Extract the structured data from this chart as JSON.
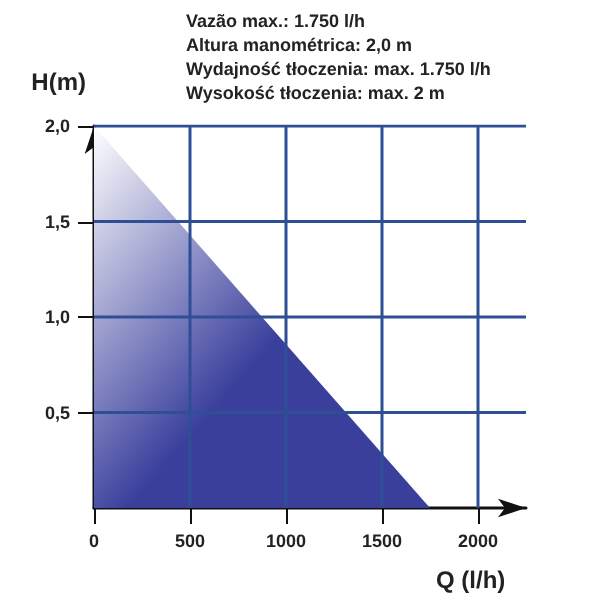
{
  "chart_data": {
    "type": "area",
    "xlabel": "Q (l/h)",
    "ylabel": "H(m)",
    "annotations": [
      "Vazão max.: 1.750 l/h",
      "Altura manométrica: 2,0 m",
      "Wydajność tłoczenia: max. 1.750 l/h",
      "Wysokość tłoczenia: max. 2 m"
    ],
    "x": [
      0,
      1750
    ],
    "series": [
      {
        "color": "#3a3f9c",
        "values": [
          2.0,
          0
        ]
      }
    ],
    "xlim": [
      0,
      2250
    ],
    "ylim": [
      0,
      2.0
    ],
    "xticks": [
      {
        "value": 0,
        "label": "0"
      },
      500,
      1000,
      1500,
      2000
    ],
    "yticks": [
      {
        "value": 0.5,
        "label": "0,5"
      },
      {
        "value": 1.0,
        "label": "1,0"
      },
      {
        "value": 1.5,
        "label": "1,5"
      },
      {
        "value": 2.0,
        "label": "2,0"
      }
    ],
    "grid": true,
    "marker": "none"
  }
}
